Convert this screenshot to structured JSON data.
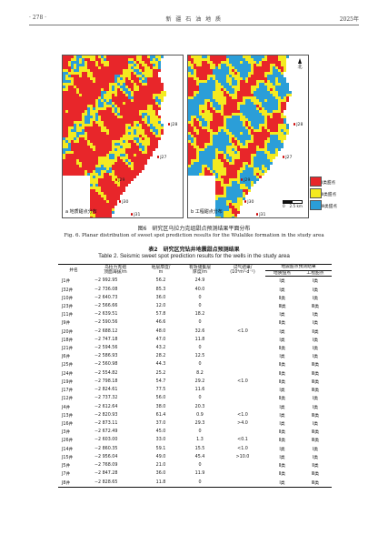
{
  "header": {
    "page_number": "· 278 ·",
    "journal": "新 疆 石 油 地 质",
    "year": "2025年"
  },
  "figure": {
    "panels": [
      {
        "label": "a 地质甜点分布"
      },
      {
        "label": "b 工程甜点分布"
      }
    ],
    "north": "北",
    "scale": {
      "zero": "0",
      "value": "2.5 km"
    },
    "wells": [
      {
        "name": "J28",
        "left": 116,
        "top": 74
      },
      {
        "name": "J27",
        "left": 104,
        "top": 110
      },
      {
        "name": "J29",
        "left": 58,
        "top": 135
      },
      {
        "name": "J30",
        "left": 62,
        "top": 159
      },
      {
        "name": "J31",
        "left": 75,
        "top": 173
      }
    ],
    "legend": [
      {
        "label": "Ⅰ类甜点",
        "color": "#e8262a"
      },
      {
        "label": "Ⅱ类甜点",
        "color": "#f4ea20"
      },
      {
        "label": "Ⅲ类甜点",
        "color": "#2b9ed8"
      }
    ],
    "caption_cn": "图6　研究区乌拉力克组甜点预测结果平面分布",
    "caption_en": "Fig. 6.  Planar distribution of sweet spot prediction results for the Wulalike formation in the study area"
  },
  "table": {
    "caption_cn": "表2　研究区完钻井地震甜点预测结果",
    "caption_en": "Table 2.  Seismic sweet spot prediction results for the wells in the study area",
    "headers": {
      "well": "井名",
      "depth": "乌拉力克组\n顶面海拔/m",
      "thickness": "地层厚度/\nm",
      "effective": "有效储集层\n厚度/m",
      "test": "试气结果/\n(10⁴m³·d⁻¹)",
      "result": "地震甜点预测结果",
      "geo": "地质甜点",
      "eng": "工程甜点"
    },
    "rows": [
      [
        "J1井",
        "−2 992.95",
        "56.2",
        "24.9",
        "",
        "Ⅰ类",
        "Ⅰ类"
      ],
      [
        "J32井",
        "−2 736.08",
        "85.3",
        "40.0",
        "",
        "Ⅰ类",
        "Ⅰ类"
      ],
      [
        "J10井",
        "−2 640.73",
        "36.0",
        "0",
        "",
        "Ⅱ类",
        "Ⅰ类"
      ],
      [
        "J23井",
        "−2 566.66",
        "12.0",
        "0",
        "",
        "Ⅲ类",
        "Ⅲ类"
      ],
      [
        "J11井",
        "−2 639.51",
        "57.8",
        "18.2",
        "",
        "Ⅰ类",
        "Ⅰ类"
      ],
      [
        "J9井",
        "−2 590.56",
        "46.6",
        "0",
        "",
        "Ⅱ类",
        "Ⅰ类"
      ],
      [
        "J20井",
        "−2 688.12",
        "48.0",
        "32.6",
        "<1.0",
        "Ⅰ类",
        "Ⅱ类"
      ],
      [
        "J18井",
        "−2 747.18",
        "47.0",
        "11.8",
        "",
        "Ⅰ类",
        "Ⅰ类"
      ],
      [
        "J21井",
        "−2 594.56",
        "43.2",
        "0",
        "",
        "Ⅱ类",
        "Ⅰ类"
      ],
      [
        "J6井",
        "−2 586.93",
        "28.2",
        "12.5",
        "",
        "Ⅰ类",
        "Ⅰ类"
      ],
      [
        "J25井",
        "−2 560.98",
        "44.3",
        "0",
        "",
        "Ⅱ类",
        "Ⅲ类"
      ],
      [
        "J24井",
        "−2 554.82",
        "25.2",
        "8.2",
        "",
        "Ⅱ类",
        "Ⅲ类"
      ],
      [
        "J19井",
        "−2 798.18",
        "54.7",
        "29.2",
        "<1.0",
        "Ⅱ类",
        "Ⅲ类"
      ],
      [
        "J17井",
        "−2 824.61",
        "77.5",
        "11.6",
        "",
        "Ⅰ类",
        "Ⅲ类"
      ],
      [
        "J12井",
        "−2 737.32",
        "56.0",
        "0",
        "",
        "Ⅱ类",
        "Ⅰ类"
      ],
      [
        "J4井",
        "−2 612.64",
        "38.0",
        "20.3",
        "",
        "Ⅰ类",
        "Ⅰ类"
      ],
      [
        "J13井",
        "−2 820.93",
        "61.4",
        "0.9",
        "<1.0",
        "Ⅰ类",
        "Ⅲ类"
      ],
      [
        "J16井",
        "−2 873.11",
        "37.0",
        "29.3",
        ">4.0",
        "Ⅰ类",
        "Ⅰ类"
      ],
      [
        "J3井",
        "−2 672.49",
        "45.0",
        "0",
        "",
        "Ⅱ类",
        "Ⅲ类"
      ],
      [
        "J26井",
        "−2 603.00",
        "33.0",
        "1.3",
        "<0.1",
        "Ⅱ类",
        "Ⅲ类"
      ],
      [
        "J14井",
        "−2 860.35",
        "59.1",
        "15.5",
        "<1.0",
        "Ⅰ类",
        "Ⅰ类"
      ],
      [
        "J15井",
        "−2 956.04",
        "49.0",
        "45.4",
        ">10.0",
        "Ⅰ类",
        "Ⅰ类"
      ],
      [
        "J5井",
        "−2 768.09",
        "21.0",
        "0",
        "",
        "Ⅱ类",
        "Ⅱ类"
      ],
      [
        "J7井",
        "−2 847.28",
        "36.0",
        "11.9",
        "",
        "Ⅱ类",
        "Ⅲ类"
      ],
      [
        "J8井",
        "−2 828.65",
        "11.8",
        "0",
        "",
        "Ⅰ类",
        "Ⅲ类"
      ]
    ]
  }
}
